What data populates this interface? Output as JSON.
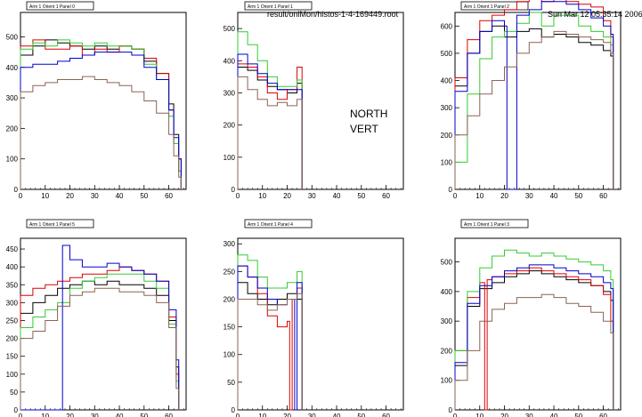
{
  "header": {
    "file_path": "result/onlMon/histos-1-4-169449.root",
    "timestamp": "Sun Mar 12 05:35:14 2006"
  },
  "annotation": {
    "line1": "NORTH",
    "line2": "VERT"
  },
  "colors": {
    "black": "#000000",
    "red": "#dd0000",
    "green": "#33cc33",
    "blue": "#0000cc",
    "brown": "#8b6351"
  },
  "chart_data": [
    {
      "type": "line",
      "title": "Arm 1 Orient 1 Panel 0",
      "xlim": [
        0,
        67
      ],
      "ylim": [
        0,
        580
      ],
      "xticks": [
        0,
        10,
        20,
        30,
        40,
        50,
        60
      ],
      "yticks": [
        0,
        100,
        200,
        300,
        400,
        500
      ],
      "series": [
        {
          "color": "black",
          "x": [
            0,
            5,
            10,
            15,
            20,
            25,
            30,
            35,
            40,
            45,
            50,
            55,
            60,
            62,
            64,
            65
          ],
          "y": [
            440,
            470,
            490,
            480,
            470,
            460,
            470,
            460,
            470,
            460,
            420,
            380,
            280,
            180,
            100,
            0
          ]
        },
        {
          "color": "red",
          "x": [
            0,
            5,
            10,
            15,
            20,
            25,
            30,
            35,
            40,
            45,
            50,
            55,
            60,
            62,
            64,
            65
          ],
          "y": [
            470,
            490,
            460,
            460,
            470,
            440,
            460,
            450,
            470,
            460,
            430,
            380,
            260,
            150,
            60,
            0
          ]
        },
        {
          "color": "green",
          "x": [
            0,
            5,
            10,
            15,
            20,
            25,
            30,
            35,
            40,
            45,
            50,
            55,
            60,
            62,
            64,
            65
          ],
          "y": [
            460,
            480,
            470,
            490,
            480,
            470,
            480,
            470,
            470,
            460,
            410,
            360,
            240,
            150,
            60,
            0
          ]
        },
        {
          "color": "blue",
          "x": [
            0,
            5,
            10,
            15,
            20,
            25,
            30,
            35,
            40,
            45,
            50,
            55,
            60,
            62,
            64,
            65
          ],
          "y": [
            400,
            410,
            410,
            420,
            430,
            440,
            450,
            450,
            450,
            440,
            400,
            360,
            260,
            170,
            100,
            0
          ]
        },
        {
          "color": "brown",
          "x": [
            0,
            5,
            10,
            15,
            20,
            25,
            30,
            35,
            40,
            45,
            50,
            55,
            60,
            62,
            64,
            65
          ],
          "y": [
            320,
            340,
            350,
            360,
            360,
            370,
            360,
            350,
            340,
            320,
            290,
            250,
            180,
            110,
            40,
            0
          ]
        }
      ]
    },
    {
      "type": "line",
      "title": "Arm 1 Orient 1 Panel 1",
      "xlim": [
        0,
        67
      ],
      "ylim": [
        0,
        550
      ],
      "xticks": [
        0,
        10,
        20,
        30,
        40,
        50,
        60
      ],
      "yticks": [
        0,
        100,
        200,
        300,
        400,
        500
      ],
      "series": [
        {
          "color": "black",
          "x": [
            0,
            4,
            8,
            12,
            16,
            20,
            24,
            26
          ],
          "y": [
            380,
            370,
            340,
            320,
            310,
            300,
            330,
            0
          ]
        },
        {
          "color": "red",
          "x": [
            0,
            4,
            8,
            12,
            16,
            20,
            24,
            26
          ],
          "y": [
            390,
            380,
            350,
            300,
            280,
            310,
            380,
            0
          ]
        },
        {
          "color": "green",
          "x": [
            0,
            4,
            8,
            12,
            16,
            20,
            24,
            26
          ],
          "y": [
            490,
            450,
            400,
            350,
            320,
            320,
            340,
            0
          ]
        },
        {
          "color": "blue",
          "x": [
            0,
            4,
            8,
            12,
            16,
            20,
            24,
            26
          ],
          "y": [
            420,
            390,
            360,
            330,
            310,
            310,
            310,
            0
          ]
        },
        {
          "color": "brown",
          "x": [
            0,
            4,
            8,
            12,
            16,
            20,
            24,
            26
          ],
          "y": [
            350,
            310,
            280,
            260,
            270,
            260,
            280,
            0
          ]
        }
      ]
    },
    {
      "type": "line",
      "title": "Arm 1 Orient 1 Panel 2",
      "xlim": [
        0,
        67
      ],
      "ylim": [
        0,
        650
      ],
      "xticks": [
        0,
        10,
        20,
        30,
        40,
        50,
        60
      ],
      "yticks": [
        0,
        100,
        200,
        300,
        400,
        500,
        600
      ],
      "series": [
        {
          "color": "black",
          "x": [
            0,
            5,
            10,
            15,
            20,
            25,
            30,
            35,
            40,
            45,
            50,
            55,
            60,
            63,
            64
          ],
          "y": [
            380,
            500,
            580,
            600,
            560,
            580,
            590,
            560,
            570,
            560,
            540,
            530,
            510,
            490,
            0
          ]
        },
        {
          "color": "red",
          "x": [
            0,
            5,
            10,
            15,
            20,
            25,
            30,
            35,
            40,
            45,
            50,
            55,
            60,
            63,
            64
          ],
          "y": [
            410,
            550,
            620,
            640,
            660,
            690,
            700,
            690,
            700,
            690,
            680,
            670,
            620,
            560,
            0
          ]
        },
        {
          "color": "green",
          "x": [
            0,
            5,
            10,
            15,
            20,
            25,
            30,
            35,
            40,
            45,
            50,
            55,
            60,
            63,
            64
          ],
          "y": [
            100,
            350,
            480,
            560,
            580,
            610,
            650,
            600,
            640,
            640,
            600,
            580,
            560,
            530,
            0
          ]
        },
        {
          "color": "blue",
          "x": [
            0,
            5,
            10,
            15,
            20,
            21,
            25,
            30,
            35,
            40,
            45,
            50,
            55,
            60,
            63,
            64
          ],
          "y": [
            360,
            500,
            580,
            620,
            600,
            0,
            640,
            660,
            690,
            690,
            680,
            660,
            630,
            600,
            570,
            0
          ]
        },
        {
          "color": "brown",
          "x": [
            0,
            5,
            10,
            15,
            20,
            25,
            30,
            35,
            40,
            45,
            50,
            55,
            60,
            63,
            64
          ],
          "y": [
            200,
            270,
            350,
            400,
            450,
            500,
            540,
            560,
            580,
            570,
            560,
            550,
            540,
            500,
            0
          ]
        }
      ]
    },
    {
      "type": "line",
      "title": "Arm 1 Orient 1 Panel 5",
      "xlim": [
        0,
        67
      ],
      "ylim": [
        0,
        480
      ],
      "xticks": [
        0,
        10,
        20,
        30,
        40,
        50,
        60
      ],
      "yticks": [
        0,
        50,
        100,
        150,
        200,
        250,
        300,
        350,
        400,
        450
      ],
      "series": [
        {
          "color": "black",
          "x": [
            0,
            5,
            10,
            15,
            20,
            25,
            30,
            35,
            40,
            45,
            50,
            55,
            60,
            63,
            64
          ],
          "y": [
            270,
            300,
            320,
            340,
            350,
            360,
            350,
            360,
            350,
            350,
            340,
            320,
            250,
            120,
            0
          ]
        },
        {
          "color": "red",
          "x": [
            0,
            5,
            10,
            15,
            20,
            25,
            30,
            35,
            40,
            45,
            50,
            55,
            60,
            63,
            64
          ],
          "y": [
            320,
            340,
            350,
            360,
            370,
            380,
            380,
            390,
            400,
            390,
            380,
            360,
            260,
            100,
            0
          ]
        },
        {
          "color": "green",
          "x": [
            0,
            5,
            10,
            15,
            20,
            25,
            30,
            35,
            40,
            45,
            50,
            55,
            60,
            63,
            64
          ],
          "y": [
            230,
            260,
            280,
            300,
            340,
            360,
            370,
            380,
            380,
            380,
            360,
            340,
            240,
            80,
            0
          ]
        },
        {
          "color": "blue",
          "x": [
            0,
            16,
            17,
            20,
            25,
            30,
            35,
            40,
            45,
            50,
            55,
            60,
            63,
            64
          ],
          "y": [
            0,
            0,
            460,
            420,
            400,
            400,
            410,
            400,
            390,
            380,
            360,
            280,
            140,
            0
          ]
        },
        {
          "color": "brown",
          "x": [
            0,
            5,
            10,
            15,
            20,
            25,
            30,
            35,
            40,
            45,
            50,
            55,
            60,
            63,
            64
          ],
          "y": [
            200,
            220,
            250,
            290,
            320,
            330,
            340,
            340,
            330,
            330,
            320,
            300,
            230,
            60,
            0
          ]
        }
      ]
    },
    {
      "type": "line",
      "title": "Arm 1 Orient 1 Panel 4",
      "xlim": [
        0,
        67
      ],
      "ylim": [
        0,
        310
      ],
      "xticks": [
        0,
        10,
        20,
        30,
        40,
        50,
        60
      ],
      "yticks": [
        0,
        50,
        100,
        150,
        200,
        250,
        300
      ],
      "series": [
        {
          "color": "black",
          "x": [
            0,
            4,
            8,
            12,
            16,
            20,
            24,
            26
          ],
          "y": [
            230,
            210,
            200,
            190,
            200,
            210,
            200,
            0
          ]
        },
        {
          "color": "red",
          "x": [
            0,
            4,
            8,
            12,
            16,
            20,
            21,
            22,
            24,
            26
          ],
          "y": [
            260,
            240,
            210,
            170,
            150,
            160,
            0,
            200,
            220,
            0
          ]
        },
        {
          "color": "green",
          "x": [
            0,
            4,
            8,
            12,
            16,
            20,
            24,
            26
          ],
          "y": [
            280,
            270,
            240,
            220,
            220,
            230,
            250,
            0
          ]
        },
        {
          "color": "blue",
          "x": [
            0,
            4,
            8,
            12,
            16,
            20,
            23,
            24,
            26
          ],
          "y": [
            260,
            240,
            220,
            200,
            190,
            200,
            0,
            230,
            0
          ]
        },
        {
          "color": "brown",
          "x": [
            0,
            4,
            8,
            12,
            16,
            20,
            24,
            26
          ],
          "y": [
            200,
            200,
            190,
            180,
            190,
            200,
            210,
            0
          ]
        }
      ]
    },
    {
      "type": "line",
      "title": "Arm 1 Orient 1 Panel 3",
      "xlim": [
        0,
        67
      ],
      "ylim": [
        0,
        580
      ],
      "xticks": [
        0,
        10,
        20,
        30,
        40,
        50,
        60
      ],
      "yticks": [
        0,
        100,
        200,
        300,
        400,
        500
      ],
      "series": [
        {
          "color": "black",
          "x": [
            0,
            5,
            10,
            15,
            20,
            25,
            30,
            35,
            40,
            45,
            50,
            55,
            60,
            63,
            64
          ],
          "y": [
            150,
            350,
            410,
            430,
            450,
            460,
            470,
            460,
            450,
            440,
            430,
            420,
            400,
            370,
            0
          ]
        },
        {
          "color": "red",
          "x": [
            0,
            5,
            10,
            12,
            13,
            15,
            20,
            25,
            30,
            35,
            40,
            45,
            50,
            55,
            60,
            63,
            64
          ],
          "y": [
            200,
            380,
            430,
            0,
            440,
            450,
            460,
            470,
            480,
            470,
            460,
            450,
            440,
            420,
            390,
            300,
            0
          ]
        },
        {
          "color": "green",
          "x": [
            0,
            5,
            10,
            15,
            20,
            25,
            30,
            35,
            40,
            45,
            50,
            55,
            60,
            63,
            64
          ],
          "y": [
            200,
            400,
            480,
            520,
            540,
            530,
            520,
            530,
            520,
            510,
            500,
            490,
            470,
            440,
            0
          ]
        },
        {
          "color": "blue",
          "x": [
            0,
            5,
            10,
            15,
            20,
            25,
            30,
            35,
            40,
            45,
            50,
            55,
            60,
            63,
            64
          ],
          "y": [
            160,
            360,
            420,
            450,
            470,
            480,
            490,
            490,
            480,
            470,
            460,
            450,
            430,
            410,
            0
          ]
        },
        {
          "color": "brown",
          "x": [
            0,
            5,
            10,
            15,
            20,
            25,
            30,
            35,
            40,
            45,
            50,
            55,
            60,
            63,
            64
          ],
          "y": [
            100,
            200,
            300,
            340,
            360,
            380,
            380,
            390,
            380,
            360,
            350,
            330,
            300,
            260,
            0
          ]
        }
      ]
    }
  ]
}
